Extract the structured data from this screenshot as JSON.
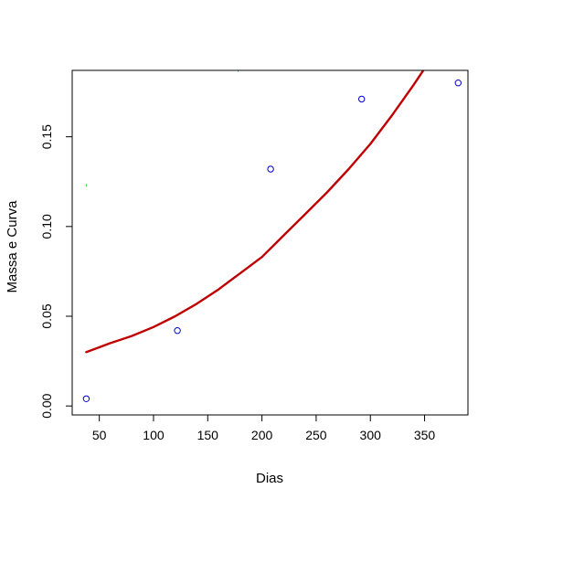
{
  "chart_data": {
    "type": "scatter",
    "title": "",
    "xlabel": "Dias",
    "ylabel": "Massa e Curva",
    "xlim": [
      25,
      390
    ],
    "ylim": [
      -0.005,
      0.187
    ],
    "x_ticks": [
      50,
      100,
      150,
      200,
      250,
      300,
      350
    ],
    "y_ticks": [
      0.0,
      0.05,
      0.1,
      0.15
    ],
    "x_tick_labels": [
      "50",
      "100",
      "150",
      "200",
      "250",
      "300",
      "350"
    ],
    "y_tick_labels": [
      "0.00",
      "0.05",
      "0.10",
      "0.15"
    ],
    "grid": false,
    "legend": "none",
    "series": [
      {
        "kind": "points",
        "color": "#0000cc",
        "x": [
          38,
          122,
          208,
          292,
          381
        ],
        "y": [
          0.004,
          0.042,
          0.132,
          0.171,
          0.18
        ]
      },
      {
        "kind": "fitted-curve",
        "color": "#c00000",
        "x": [
          38,
          60,
          80,
          100,
          120,
          140,
          160,
          180,
          200,
          220,
          240,
          260,
          280,
          300,
          320,
          340,
          350
        ],
        "y": [
          0.03,
          0.035,
          0.039,
          0.044,
          0.05,
          0.057,
          0.065,
          0.074,
          0.083,
          0.095,
          0.107,
          0.119,
          0.132,
          0.146,
          0.162,
          0.179,
          0.188
        ]
      },
      {
        "kind": "marks",
        "color": "#33cc33",
        "x": [
          38,
          178
        ],
        "y": [
          0.123,
          0.187
        ]
      }
    ]
  }
}
